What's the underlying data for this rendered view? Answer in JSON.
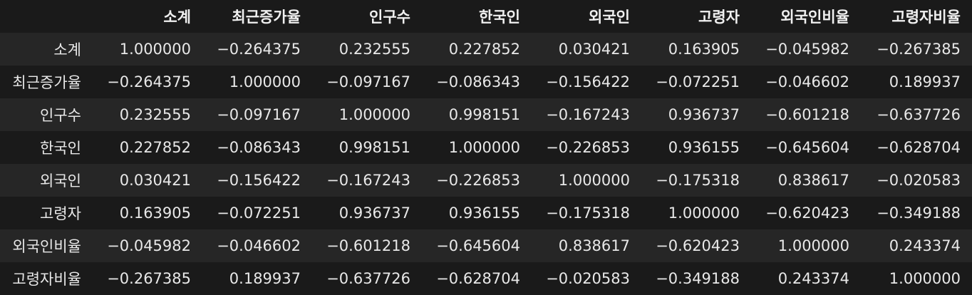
{
  "table": {
    "corner": "",
    "columns": [
      "소계",
      "최근증가율",
      "인구수",
      "한국인",
      "외국인",
      "고령자",
      "외국인비율",
      "고령자비율"
    ],
    "rows": [
      {
        "index": "소계",
        "cells": [
          "1.000000",
          "−0.264375",
          "0.232555",
          "0.227852",
          "0.030421",
          "0.163905",
          "−0.045982",
          "−0.267385"
        ]
      },
      {
        "index": "최근증가율",
        "cells": [
          "−0.264375",
          "1.000000",
          "−0.097167",
          "−0.086343",
          "−0.156422",
          "−0.072251",
          "−0.046602",
          "0.189937"
        ]
      },
      {
        "index": "인구수",
        "cells": [
          "0.232555",
          "−0.097167",
          "1.000000",
          "0.998151",
          "−0.167243",
          "0.936737",
          "−0.601218",
          "−0.637726"
        ]
      },
      {
        "index": "한국인",
        "cells": [
          "0.227852",
          "−0.086343",
          "0.998151",
          "1.000000",
          "−0.226853",
          "0.936155",
          "−0.645604",
          "−0.628704"
        ]
      },
      {
        "index": "외국인",
        "cells": [
          "0.030421",
          "−0.156422",
          "−0.167243",
          "−0.226853",
          "1.000000",
          "−0.175318",
          "0.838617",
          "−0.020583"
        ]
      },
      {
        "index": "고령자",
        "cells": [
          "0.163905",
          "−0.072251",
          "0.936737",
          "0.936155",
          "−0.175318",
          "1.000000",
          "−0.620423",
          "−0.349188"
        ]
      },
      {
        "index": "외국인비율",
        "cells": [
          "−0.045982",
          "−0.046602",
          "−0.601218",
          "−0.645604",
          "0.838617",
          "−0.620423",
          "1.000000",
          "0.243374"
        ]
      },
      {
        "index": "고령자비율",
        "cells": [
          "−0.267385",
          "0.189937",
          "−0.637726",
          "−0.628704",
          "−0.020583",
          "−0.349188",
          "0.243374",
          "1.000000"
        ]
      }
    ]
  }
}
